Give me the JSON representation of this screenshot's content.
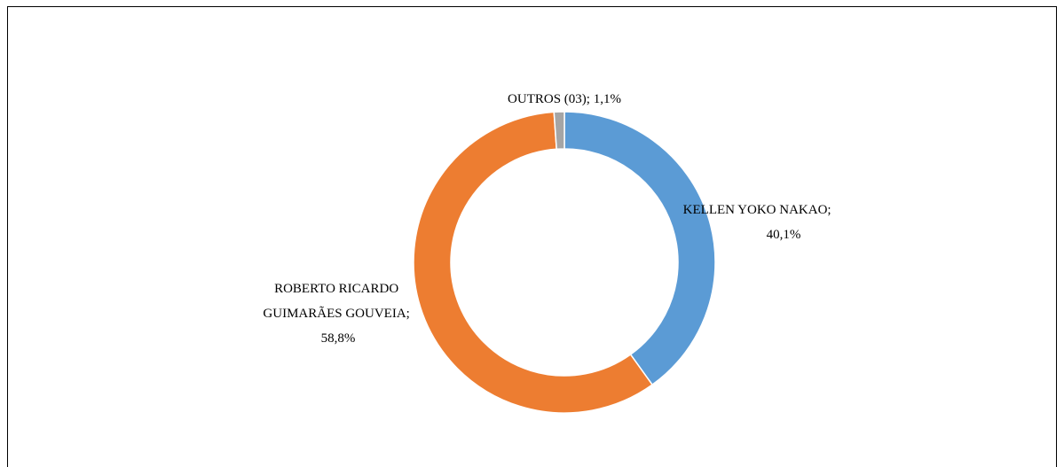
{
  "chart_data": {
    "type": "pie",
    "donut": true,
    "slices": [
      {
        "label": "KELLEN YOKO NAKAO",
        "value": 40.1,
        "value_text": "40,1%",
        "color": "#5b9bd5"
      },
      {
        "label": "ROBERTO RICARDO GUIMARÃES GOUVEIA",
        "value": 58.8,
        "value_text": "58,8%",
        "color": "#ed7d31"
      },
      {
        "label": "OUTROS (03)",
        "value": 1.1,
        "value_text": "1,1%",
        "color": "#a5a5a5"
      }
    ],
    "start_angle": "12 o'clock",
    "direction": "clockwise",
    "data_labels": [
      {
        "lines": [
          "KELLEN YOKO NAKAO;",
          "40,1%"
        ]
      },
      {
        "lines": [
          "ROBERTO RICARDO",
          "GUIMARÃES GOUVEIA;",
          "58,8%"
        ]
      },
      {
        "lines": [
          "OUTROS (03); 1,1%"
        ]
      }
    ],
    "legend": "none"
  }
}
